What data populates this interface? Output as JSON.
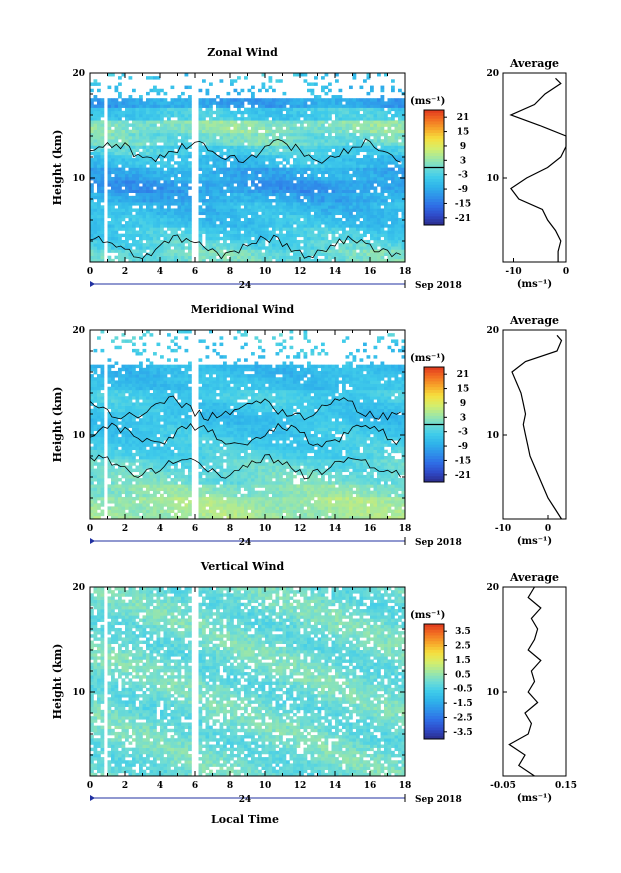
{
  "page": {
    "x_axis_label": "Local Time",
    "date_label": "Sep 2018",
    "day_label": "24",
    "height_axis_label": "Height (km)",
    "average_title": "Average",
    "unit_label": "(ms⁻¹)"
  },
  "colors": {
    "missing": "#ffffff",
    "contour": "#000000",
    "colormap": [
      "#2b2c8c",
      "#2f4bc9",
      "#2f6ee6",
      "#2f92ea",
      "#2fb4ea",
      "#40ccea",
      "#6fdcd4",
      "#a3e8a0",
      "#d6ee6a",
      "#f6df3e",
      "#f7a72a",
      "#f26e22",
      "#e0381f"
    ]
  },
  "chart_data": [
    {
      "id": "zonal",
      "type": "heatmap",
      "title": "Zonal Wind",
      "xlabel": "",
      "ylabel": "Height (km)",
      "xlim": [
        0,
        18
      ],
      "ylim": [
        2,
        20
      ],
      "x_ticks": [
        0,
        2,
        4,
        6,
        8,
        10,
        12,
        14,
        16,
        18
      ],
      "y_ticks": [
        10,
        20
      ],
      "colorbar": {
        "ticks": [
          21,
          15,
          9,
          3,
          -3,
          -9,
          -15,
          -21
        ],
        "range": [
          -24,
          24
        ],
        "contour_level": 0
      },
      "data_gaps_x": [
        [
          0.9,
          1.05
        ],
        [
          5.85,
          6.15
        ]
      ],
      "profile": {
        "xlim": [
          -12,
          0
        ],
        "x_ticks": [
          -10,
          0
        ],
        "x_tick_labels": [
          "-10",
          "0"
        ],
        "height": [
          2,
          3,
          4,
          5,
          6,
          7,
          8,
          9,
          10,
          11,
          12,
          13,
          14,
          15,
          16,
          17,
          18,
          19,
          19.5
        ],
        "values": [
          -1.5,
          -1.5,
          -1,
          -2,
          -3.5,
          -4.5,
          -9,
          -10.5,
          -7.5,
          -3.5,
          -1,
          0,
          0,
          -5,
          -10.5,
          -6,
          -4,
          -1,
          -2
        ]
      },
      "field_model": {
        "baseline": [
          0,
          -2,
          -4,
          -6,
          -7,
          -9,
          -11,
          -9,
          -6,
          -3,
          0,
          2,
          -4,
          -10,
          -7,
          -5
        ],
        "variability": 3.5,
        "top_km": 17.5
      }
    },
    {
      "id": "meridional",
      "type": "heatmap",
      "title": "Meridional Wind",
      "xlabel": "",
      "ylabel": "Height (km)",
      "xlim": [
        0,
        18
      ],
      "ylim": [
        2,
        20
      ],
      "x_ticks": [
        0,
        2,
        4,
        6,
        8,
        10,
        12,
        14,
        16,
        18
      ],
      "y_ticks": [
        10,
        20
      ],
      "colorbar": {
        "ticks": [
          21,
          15,
          9,
          3,
          -3,
          -9,
          -15,
          -21
        ],
        "range": [
          -24,
          24
        ],
        "contour_level": 0
      },
      "data_gaps_x": [
        [
          0.9,
          1.05
        ],
        [
          5.85,
          6.15
        ]
      ],
      "profile": {
        "xlim": [
          -10,
          4
        ],
        "x_ticks": [
          -10,
          0
        ],
        "x_tick_labels": [
          "-10",
          "0"
        ],
        "height": [
          2,
          3,
          4,
          5,
          6,
          7,
          8,
          9,
          10,
          11,
          12,
          13,
          14,
          15,
          16,
          17,
          18,
          19,
          19.5
        ],
        "values": [
          3,
          1.5,
          0,
          -1,
          -2,
          -3,
          -4,
          -4.5,
          -5,
          -5.5,
          -5,
          -5.5,
          -6,
          -7,
          -8,
          -5,
          2,
          3,
          2
        ]
      },
      "field_model": {
        "baseline": [
          4,
          4,
          2,
          0,
          -1,
          -3,
          -4,
          -5,
          -6,
          -5,
          -4,
          -6,
          -7,
          -6,
          -5,
          -3
        ],
        "variability": 2.8,
        "top_km": 16.8
      }
    },
    {
      "id": "vertical",
      "type": "heatmap",
      "title": "Vertical Wind",
      "xlabel": "Local Time",
      "ylabel": "Height (km)",
      "xlim": [
        0,
        18
      ],
      "ylim": [
        2,
        20
      ],
      "x_ticks": [
        0,
        2,
        4,
        6,
        8,
        10,
        12,
        14,
        16,
        18
      ],
      "y_ticks": [
        10,
        20
      ],
      "colorbar": {
        "ticks": [
          3.5,
          2.5,
          1.5,
          0.5,
          -0.5,
          -1.5,
          -2.5,
          -3.5
        ],
        "range": [
          -4,
          4
        ],
        "contour_level": null
      },
      "data_gaps_x": [
        [
          0.9,
          1.05
        ],
        [
          5.85,
          6.15
        ]
      ],
      "profile": {
        "xlim": [
          -0.05,
          0.15
        ],
        "x_ticks": [
          -0.05,
          0.15
        ],
        "x_tick_labels": [
          "-0.05",
          "0.15"
        ],
        "height": [
          2,
          3,
          4,
          5,
          6,
          7,
          8,
          9,
          10,
          11,
          12,
          13,
          14,
          15,
          16,
          17,
          18,
          19,
          20
        ],
        "values": [
          0.05,
          0.0,
          0.02,
          -0.03,
          0.03,
          0.04,
          0.02,
          0.06,
          0.03,
          0.05,
          0.04,
          0.07,
          0.03,
          0.05,
          0.06,
          0.04,
          0.07,
          0.03,
          0.05
        ]
      },
      "field_model": {
        "baseline": [
          0,
          0,
          0,
          0,
          0,
          0,
          0,
          0,
          0,
          0,
          0,
          0,
          0,
          0,
          0,
          0
        ],
        "variability": 0.6,
        "top_km": 20
      }
    }
  ]
}
